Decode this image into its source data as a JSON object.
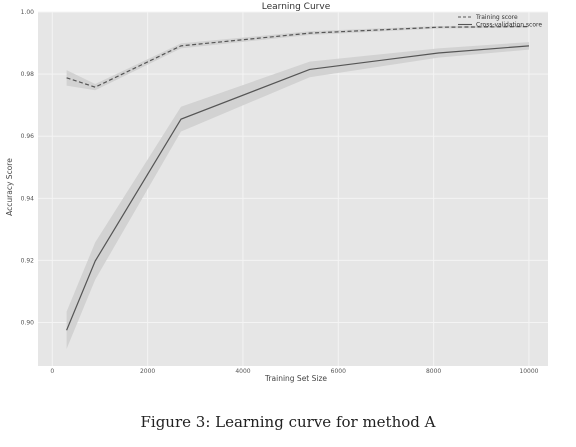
{
  "caption": "Figure 3: Learning curve for method A",
  "colors": {
    "plot_bg": "#e6e6e6",
    "grid": "#f4f4f4",
    "line": "#555555",
    "band": "#cfcfcf"
  },
  "chart_data": {
    "type": "line",
    "title": "Learning Curve",
    "xlabel": "Training Set Size",
    "ylabel": "Accuracy Score",
    "xlim": [
      -300,
      10400
    ],
    "ylim": [
      0.886,
      1.0
    ],
    "x_ticks": [
      0,
      2000,
      4000,
      6000,
      8000,
      10000
    ],
    "y_ticks": [
      0.9,
      0.92,
      0.94,
      0.96,
      0.98,
      1.0
    ],
    "x_tick_labels": [
      "0",
      "2000",
      "4000",
      "6000",
      "8000",
      "10000"
    ],
    "y_tick_labels": [
      "0.90",
      "0.92",
      "0.94",
      "0.96",
      "0.98",
      "1.00"
    ],
    "grid": true,
    "legend_position": "top-right",
    "x": [
      300,
      900,
      2700,
      5400,
      8100,
      10000
    ],
    "series": [
      {
        "name": "Training score",
        "style": "dashed",
        "values": [
          0.9788,
          0.9758,
          0.9891,
          0.9932,
          0.9951,
          0.9953
        ],
        "band": [
          0.0025,
          0.001,
          0.0008,
          0.0006,
          0.0004,
          0.0003
        ]
      },
      {
        "name": "Cross-validation score",
        "style": "solid",
        "values": [
          0.8975,
          0.9198,
          0.9655,
          0.9815,
          0.9868,
          0.9891
        ],
        "band": [
          0.006,
          0.006,
          0.004,
          0.0025,
          0.0015,
          0.0012
        ]
      }
    ]
  }
}
